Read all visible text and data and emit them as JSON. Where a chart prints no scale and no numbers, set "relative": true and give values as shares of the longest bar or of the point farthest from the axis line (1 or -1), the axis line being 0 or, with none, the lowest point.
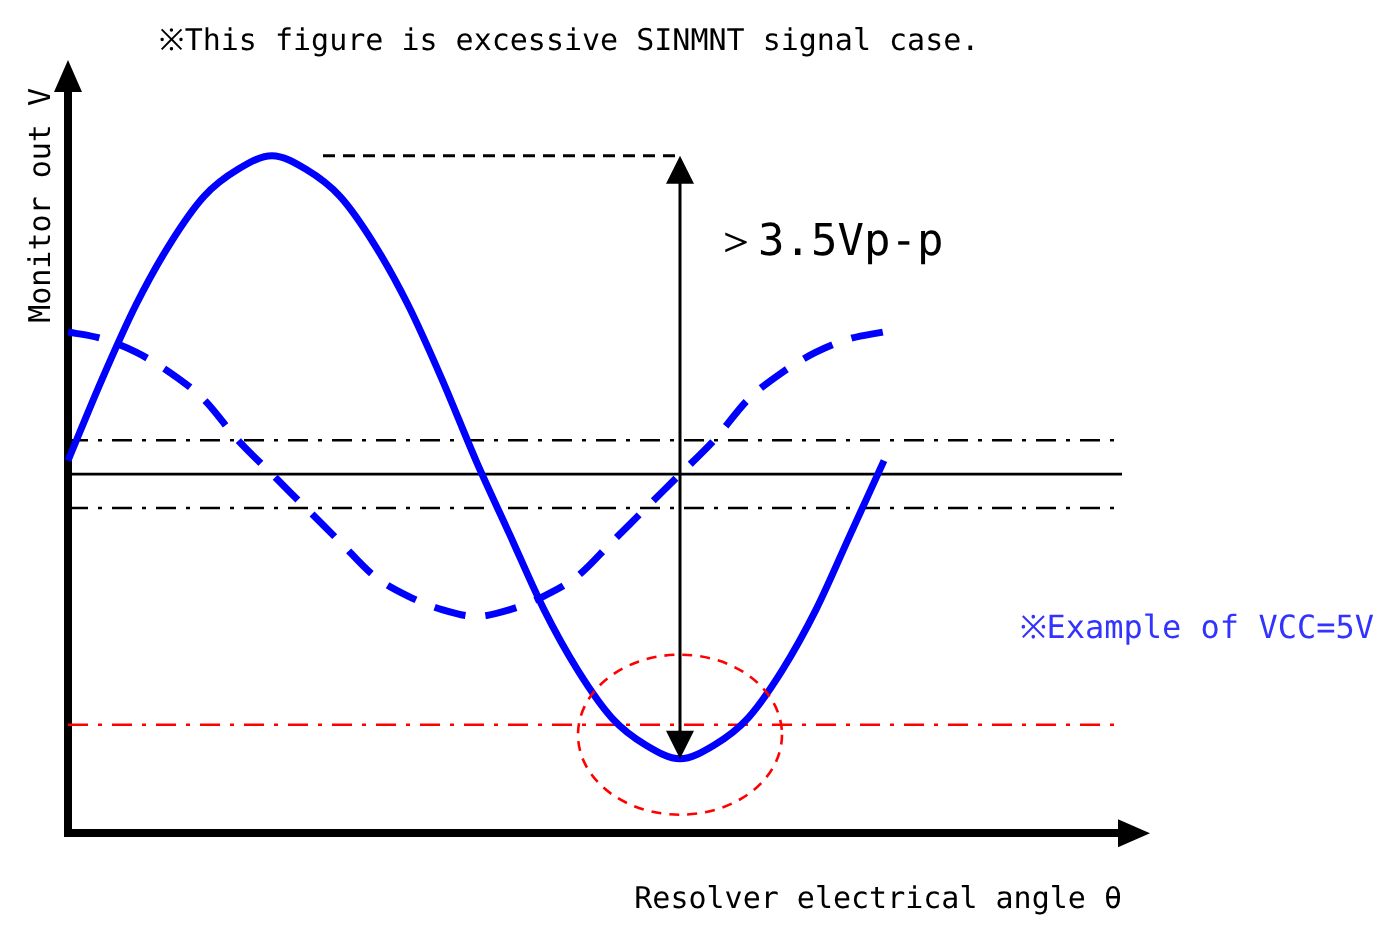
{
  "chart_data": {
    "type": "line",
    "relative": true,
    "title": "※This figure is excessive SINMNT signal case.",
    "xlabel": "Resolver electrical angle θ",
    "ylabel": "Monitor out V",
    "categories": [
      null,
      null,
      null,
      null,
      null,
      null,
      null,
      null,
      null,
      null,
      null,
      null,
      null,
      null,
      null,
      null,
      null,
      null,
      null,
      null,
      null,
      null,
      null,
      null,
      null,
      null,
      null,
      null,
      null,
      null,
      null,
      null
    ],
    "series": [
      {
        "color": "#0000ff",
        "line_style": "solid",
        "values": [
          0.55,
          0.67,
          0.78,
          0.87,
          0.94,
          0.98,
          1,
          0.98,
          0.94,
          0.87,
          0.78,
          0.67,
          0.55,
          0.44,
          0.33,
          0.24,
          0.17,
          0.13,
          0.11,
          0.13,
          0.17,
          0.24,
          0.33,
          0.44,
          0.55,
          null,
          null,
          null,
          null,
          null,
          null,
          null
        ]
      },
      {
        "color": "#0000ff",
        "line_style": "dashed",
        "values": [
          0.74,
          0.73,
          0.71,
          0.68,
          0.64,
          0.58,
          0.53,
          0.48,
          0.43,
          0.38,
          0.35,
          0.33,
          0.32,
          0.33,
          0.35,
          0.38,
          0.43,
          0.48,
          0.53,
          0.58,
          0.64,
          0.68,
          0.71,
          0.73,
          0.74,
          null,
          null,
          null,
          null,
          null,
          null,
          null
        ]
      }
    ],
    "ref_lines": [
      {
        "axis": "y",
        "value": 0.58,
        "color": "#000000",
        "line_style": "dashed"
      },
      {
        "axis": "y",
        "value": 0.53,
        "color": "#000000",
        "line_style": "solid"
      },
      {
        "axis": "y",
        "value": 0.48,
        "color": "#000000",
        "line_style": "dashed"
      },
      {
        "axis": "y",
        "value": 0.16,
        "color": "#ff0000",
        "line_style": "dashed"
      }
    ],
    "annotations": [
      "＞3.5Vp-p",
      "※Example of VCC=5V"
    ],
    "grid": false,
    "legend": false,
    "marker": "none"
  }
}
